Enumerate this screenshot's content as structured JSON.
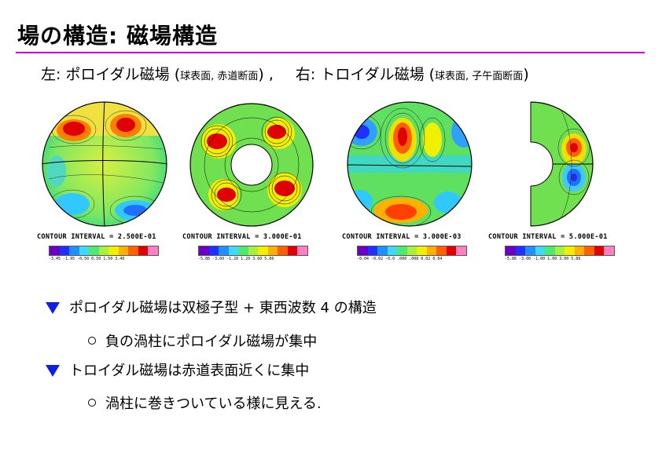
{
  "slide": {
    "title": "場の構造: 磁場構造",
    "subtitle_left": "左: ポロイダル磁場 (",
    "subtitle_left_small": "球表面, 赤道断面",
    "subtitle_left_end": ") ,",
    "subtitle_right": "右: トロイダル磁場 (",
    "subtitle_right_small": "球表面, 子午面断面",
    "subtitle_right_end": ")"
  },
  "figures": [
    {
      "contour_interval": "CONTOUR INTERVAL = 2.500E-01",
      "colorbar_ticks": "-3.45 -1.95 -0.50 0.50 1.50 3.46"
    },
    {
      "contour_interval": "CONTOUR INTERVAL = 3.000E-01",
      "colorbar_ticks": "-5.86 -3.60 -1.20 1.20 3.60 5.86"
    },
    {
      "contour_interval": "CONTOUR INTERVAL = 3.000E-03",
      "colorbar_ticks": "-0.04 -0.02 -0.0 .000 .008 0.02 0.04"
    },
    {
      "contour_interval": "CONTOUR INTERVAL = 5.000E-01",
      "colorbar_ticks": "-5.86 -3.00 -1.00 1.00 3.00 5.86"
    }
  ],
  "bullets": [
    {
      "level": 1,
      "text": "ポロイダル磁場は双極子型 + 東西波数 4 の構造"
    },
    {
      "level": 2,
      "text": "負の渦柱にポロイダル磁場が集中"
    },
    {
      "level": 1,
      "text": "トロイダル磁場は赤道表面近くに集中"
    },
    {
      "level": 2,
      "text": "渦柱に巻きついている様に見える."
    }
  ],
  "colors": {
    "rule": "#e000e0",
    "bullet_triangle": "#1020e0",
    "colorbar": [
      "#6a00c8",
      "#2030ff",
      "#2090ff",
      "#40d8ff",
      "#50e870",
      "#a8f040",
      "#f0f000",
      "#ffb000",
      "#ff6000",
      "#e00000",
      "#ff80c0"
    ]
  }
}
